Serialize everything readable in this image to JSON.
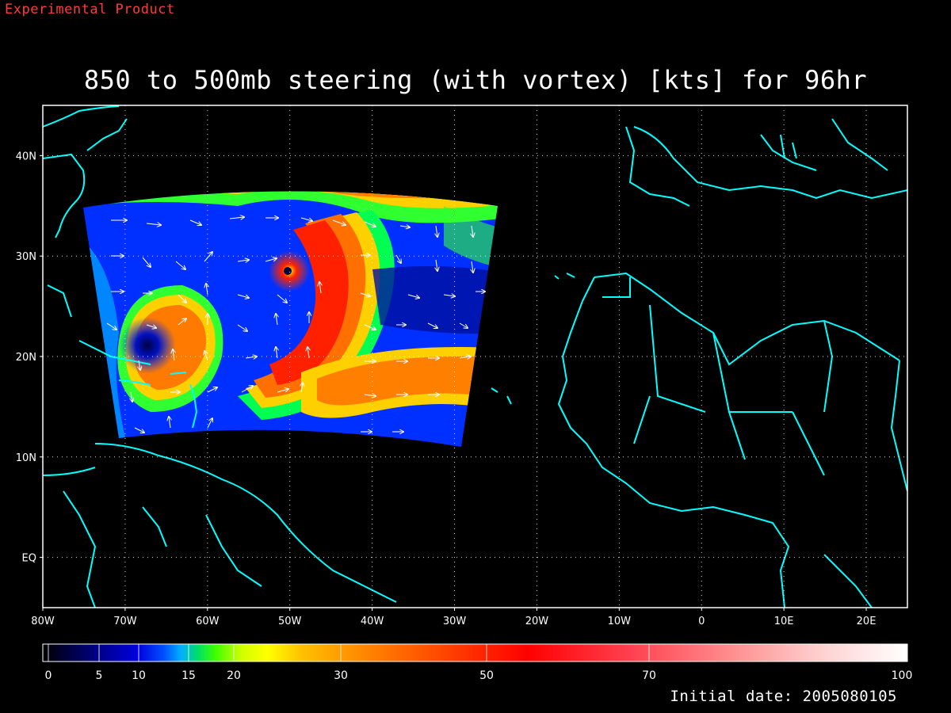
{
  "header": {
    "experimental_label": "Experimental Product",
    "title": "850 to 500mb steering (with vortex) [kts] for 96hr"
  },
  "map": {
    "lat_ticks": [
      {
        "lat": 40,
        "label": "40N"
      },
      {
        "lat": 30,
        "label": "30N"
      },
      {
        "lat": 20,
        "label": "20N"
      },
      {
        "lat": 10,
        "label": "10N"
      },
      {
        "lat": 0,
        "label": "EQ"
      }
    ],
    "lon_ticks": [
      {
        "lon": -80,
        "label": "80W"
      },
      {
        "lon": -70,
        "label": "70W"
      },
      {
        "lon": -60,
        "label": "60W"
      },
      {
        "lon": -50,
        "label": "50W"
      },
      {
        "lon": -40,
        "label": "40W"
      },
      {
        "lon": -30,
        "label": "30W"
      },
      {
        "lon": -20,
        "label": "20W"
      },
      {
        "lon": -10,
        "label": "10W"
      },
      {
        "lon": 0,
        "label": "0"
      },
      {
        "lon": 10,
        "label": "10E"
      },
      {
        "lon": 20,
        "label": "20E"
      }
    ],
    "lon_range": [
      -80,
      25
    ],
    "lat_range": [
      -5,
      45
    ],
    "coastline_color": "#00ffff",
    "grid_style": "dotted white"
  },
  "colorbar": {
    "ticks": [
      {
        "value": 0,
        "label": "0"
      },
      {
        "value": 5,
        "label": "5"
      },
      {
        "value": 10,
        "label": "10"
      },
      {
        "value": 15,
        "label": "15"
      },
      {
        "value": 20,
        "label": "20"
      },
      {
        "value": 30,
        "label": "30"
      },
      {
        "value": 50,
        "label": "50"
      },
      {
        "value": 70,
        "label": "70"
      },
      {
        "value": 100,
        "label": "100"
      }
    ],
    "colors": [
      "#000000",
      "#000060",
      "#0000c0",
      "#0040ff",
      "#00a0ff",
      "#00e060",
      "#40ff00",
      "#c0ff00",
      "#ffff00",
      "#ffc000",
      "#ff8000",
      "#ff4000",
      "#ff0000",
      "#ff4050",
      "#ff8080",
      "#ffc0c0",
      "#ffffff"
    ]
  },
  "footer": {
    "initial_date": "Initial date: 2005080105"
  }
}
